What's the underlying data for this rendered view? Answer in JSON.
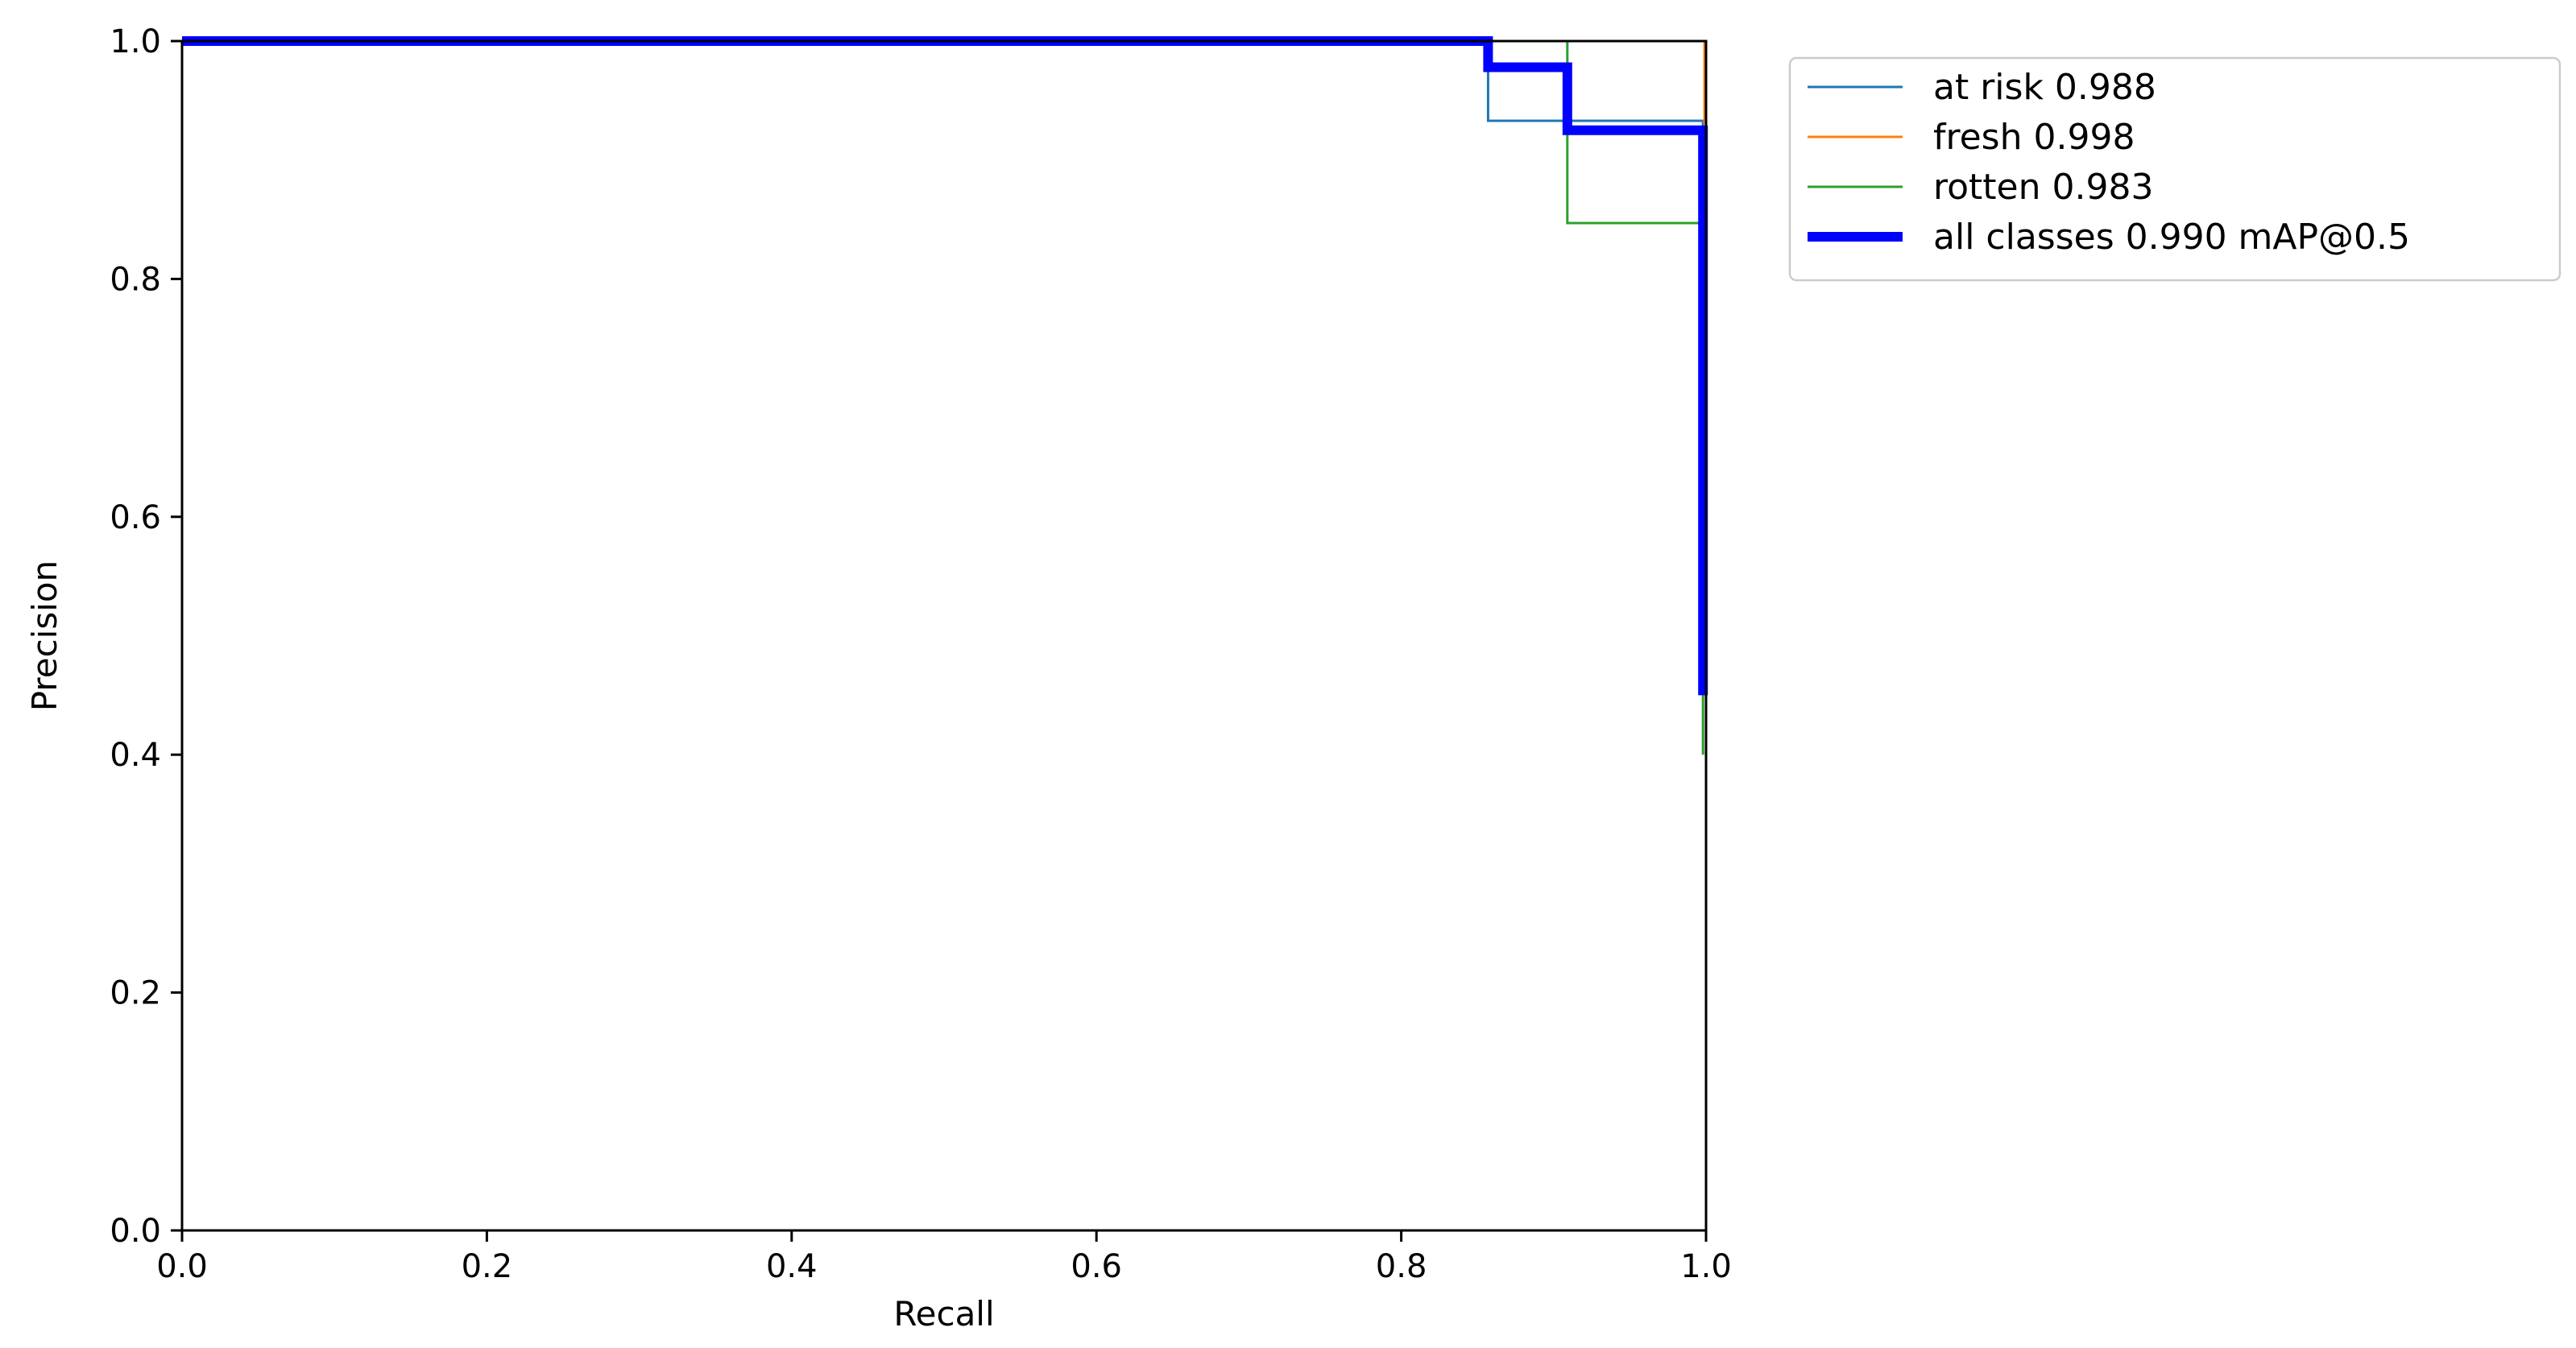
{
  "chart_data": {
    "type": "line",
    "title": "",
    "xlabel": "Recall",
    "ylabel": "Precision",
    "xlim": [
      0.0,
      1.0
    ],
    "ylim": [
      0.0,
      1.0
    ],
    "xticks": [
      "0.0",
      "0.2",
      "0.4",
      "0.6",
      "0.8",
      "1.0"
    ],
    "yticks": [
      "0.0",
      "0.2",
      "0.4",
      "0.6",
      "0.8",
      "1.0"
    ],
    "grid": false,
    "legend_position": "outside-top-right",
    "series": [
      {
        "name": "at risk 0.988",
        "color": "#1f77b4",
        "emphasis": "normal",
        "x": [
          0.0,
          0.857,
          0.857,
          0.998,
          0.998
        ],
        "y": [
          1.0,
          1.0,
          0.933,
          0.933,
          0.45
        ]
      },
      {
        "name": "fresh 0.998",
        "color": "#ff7f0e",
        "emphasis": "normal",
        "x": [
          0.0,
          0.999,
          0.999
        ],
        "y": [
          1.0,
          1.0,
          0.93
        ]
      },
      {
        "name": "rotten 0.983",
        "color": "#2ca02c",
        "emphasis": "normal",
        "x": [
          0.0,
          0.909,
          0.909,
          0.998,
          0.998
        ],
        "y": [
          1.0,
          1.0,
          0.847,
          0.847,
          0.4
        ]
      },
      {
        "name": "all classes 0.990 mAP@0.5",
        "color": "#0000ff",
        "emphasis": "bold",
        "x": [
          0.0,
          0.857,
          0.857,
          0.909,
          0.909,
          0.998,
          0.998
        ],
        "y": [
          1.0,
          1.0,
          0.978,
          0.978,
          0.925,
          0.925,
          0.45
        ]
      }
    ]
  }
}
